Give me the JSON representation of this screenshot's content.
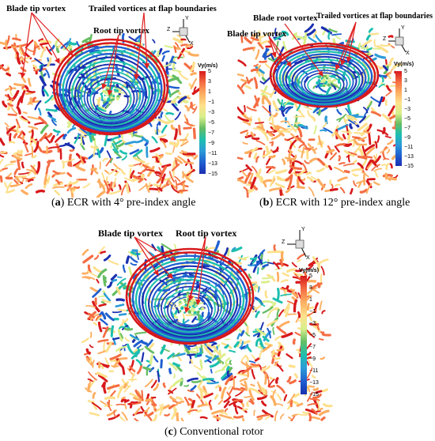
{
  "panels": [
    {
      "id": "a",
      "letter": "a",
      "caption_rest": " ECR with 4° pre-index angle",
      "annotations": [
        "Blade tip vortex",
        "Trailed vortices at flap boundaries",
        "Root tip vortex"
      ],
      "legend_title": "Vy(m/s)",
      "ticks": [
        "5",
        "3",
        "1",
        "−1",
        "−3",
        "−5",
        "−7",
        "−9",
        "−11",
        "−13",
        "−15"
      ],
      "axes": {
        "y": "Y",
        "z": "Z",
        "x": "X"
      }
    },
    {
      "id": "b",
      "letter": "b",
      "caption_rest": " ECR with 12° pre-index angle",
      "annotations": [
        "Blade root vortex",
        "Trailed vortices at flap boundaries",
        "Blade tip vortex"
      ],
      "legend_title": "Vy(m/s)",
      "ticks": [
        "5",
        "3",
        "1",
        "−1",
        "−3",
        "−5",
        "−7",
        "−9",
        "−11",
        "−13",
        "−15"
      ],
      "axes": {
        "y": "Y",
        "z": "Z",
        "x": "X"
      }
    },
    {
      "id": "c",
      "letter": "c",
      "caption_rest": " Conventional rotor",
      "annotations": [
        "Blade tip vortex",
        "Root tip vortex"
      ],
      "legend_title": "Vy(m/s)",
      "ticks": [
        "5",
        "3",
        "1",
        "−1",
        "−3",
        "−5",
        "−7",
        "−9",
        "−11",
        "−13",
        "−15"
      ],
      "axes": {
        "y": "Y",
        "z": "Z",
        "x": "X"
      }
    }
  ],
  "colorscale": [
    "#d7191c",
    "#f46d43",
    "#fdae61",
    "#fee08b",
    "#d9ef8b",
    "#66bd63",
    "#1dbfae",
    "#2c9bd8",
    "#1f5fd0",
    "#1a2fb0"
  ],
  "arrow_color": "#e02020"
}
